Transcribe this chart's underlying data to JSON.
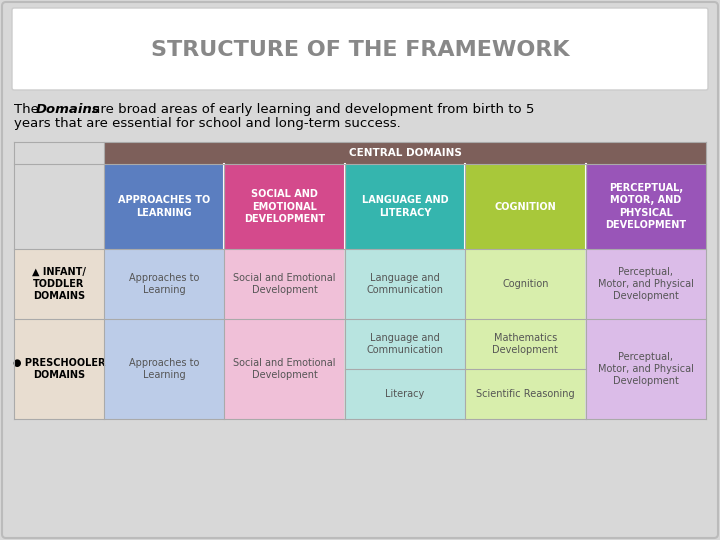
{
  "title": "STRUCTURE OF THE FRAMEWORK",
  "bg_color": "#d8d8d8",
  "outer_border_color": "#aaaaaa",
  "title_box_color": "#ffffff",
  "title_color": "#888888",
  "header_bar_color": "#7d5f5a",
  "header_text": "CENTRAL DOMAINS",
  "col_colors": {
    "approaches": "#5b7ec0",
    "social": "#d44a8c",
    "language": "#35b5ae",
    "cognition": "#a8c83a",
    "perceptual": "#9955b8"
  },
  "col_colors_light": {
    "approaches": "#bccce8",
    "social": "#f0c0d8",
    "language": "#b8e4e0",
    "cognition": "#d8eeac",
    "perceptual": "#dbbce8"
  },
  "label_left_bg": "#e8ddd0",
  "columns": [
    {
      "key": "approaches",
      "header": "APPROACHES TO\nLEARNING"
    },
    {
      "key": "social",
      "header": "SOCIAL AND\nEMOTIONAL\nDEVELOPMENT"
    },
    {
      "key": "language",
      "header": "LANGUAGE AND\nLITERACY"
    },
    {
      "key": "cognition",
      "header": "COGNITION"
    },
    {
      "key": "perceptual",
      "header": "PERCEPTUAL,\nMOTOR, AND\nPHYSICAL\nDEVELOPMENT"
    }
  ],
  "infant_label": "▲ INFANT/\nTODDLER\nDOMAINS",
  "preschool_label": "● PRESCHOOLER\nDOMAINS",
  "infant_cells": [
    "Approaches to\nLearning",
    "Social and Emotional\nDevelopment",
    "Language and\nCommunication",
    "Cognition",
    "Perceptual,\nMotor, and Physical\nDevelopment"
  ],
  "preschool_cells_col3": [
    "Language and\nCommunication",
    "Literacy"
  ],
  "preschool_cells_col4": [
    "Mathematics\nDevelopment",
    "Scientific Reasoning"
  ],
  "preschool_cell_approaches": "Approaches to\nLearning",
  "preschool_cell_social": "Social and Emotional\nDevelopment",
  "preschool_cell_perceptual": "Perceptual,\nMotor, and Physical\nDevelopment"
}
